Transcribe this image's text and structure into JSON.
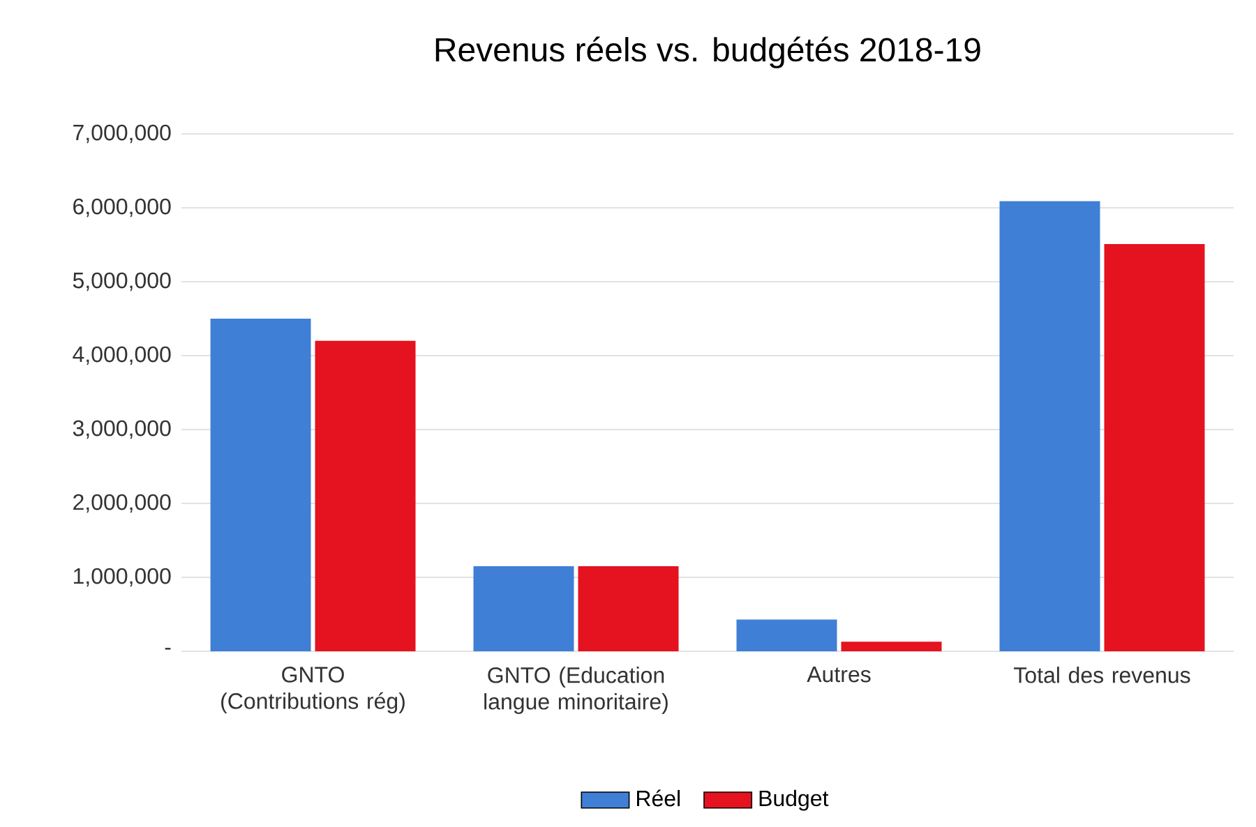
{
  "chart_data": {
    "type": "bar",
    "title": "Revenus réels vs. budgétés 2018-19",
    "categories": [
      "GNTO (Contributions rég)",
      "GNTO (Education langue minoritaire)",
      "Autres",
      "Total des revenus"
    ],
    "series": [
      {
        "name": "Réel",
        "color": "#3f7fd6",
        "values": [
          4500000,
          1150000,
          430000,
          6090000
        ]
      },
      {
        "name": "Budget",
        "color": "#e5121f",
        "values": [
          4200000,
          1150000,
          130000,
          5510000
        ]
      }
    ],
    "ylim": [
      0,
      7000000
    ],
    "yticks": [
      {
        "value": 0,
        "label": "-"
      },
      {
        "value": 1000000,
        "label": "1,000,000"
      },
      {
        "value": 2000000,
        "label": "2,000,000"
      },
      {
        "value": 3000000,
        "label": "3,000,000"
      },
      {
        "value": 4000000,
        "label": "4,000,000"
      },
      {
        "value": 5000000,
        "label": "5,000,000"
      },
      {
        "value": 6000000,
        "label": "6,000,000"
      },
      {
        "value": 7000000,
        "label": "7,000,000"
      }
    ],
    "grid": "y",
    "legend": "bottom"
  }
}
